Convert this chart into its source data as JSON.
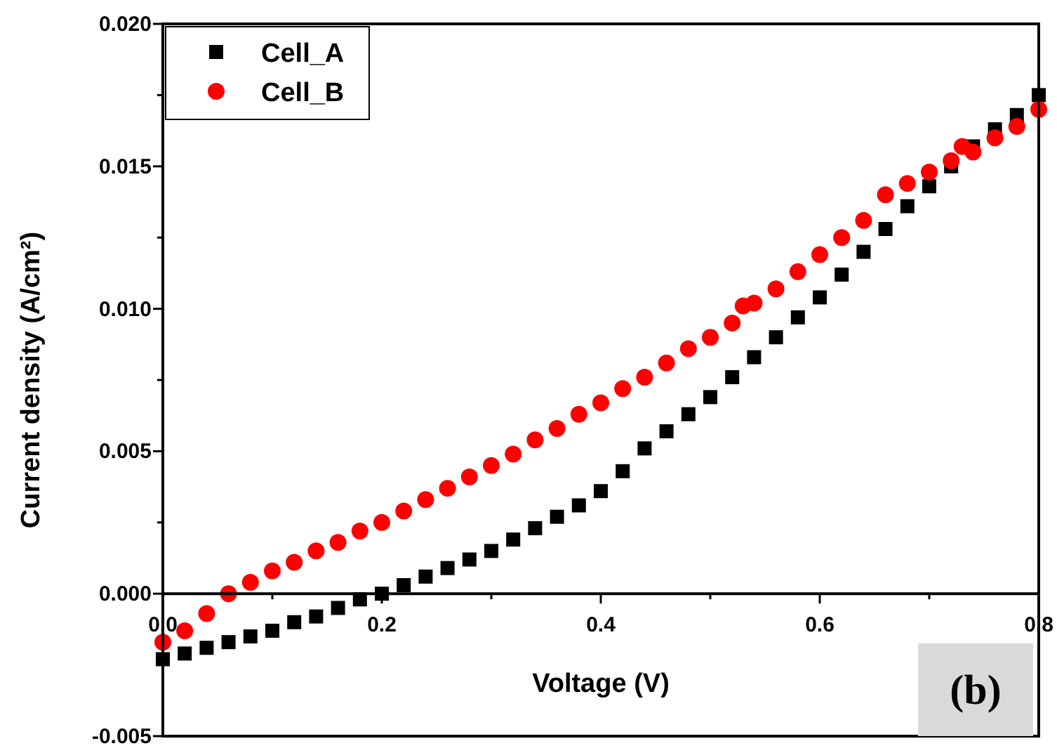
{
  "chart_data": {
    "type": "scatter",
    "xlabel": "Voltage (V)",
    "ylabel": "Current density (A/cm²)",
    "xlim": [
      0,
      0.8
    ],
    "ylim": [
      -0.005,
      0.02
    ],
    "xticks": [
      {
        "value": 0,
        "label": "0.0"
      },
      {
        "value": 0.1,
        "label": null
      },
      0.2,
      {
        "value": 0.3,
        "label": null
      },
      0.4,
      {
        "value": 0.5,
        "label": null
      },
      0.6,
      {
        "value": 0.7,
        "label": null
      },
      0.8
    ],
    "yticks": [
      {
        "value": -0.005,
        "label": "-0.005"
      },
      {
        "value": -0.0025,
        "label": null
      },
      {
        "value": 0,
        "label": "0.000"
      },
      {
        "value": 0.0025,
        "label": null
      },
      {
        "value": 0.005,
        "label": "0.005"
      },
      {
        "value": 0.0075,
        "label": null
      },
      {
        "value": 0.01,
        "label": "0.010"
      },
      {
        "value": 0.0125,
        "label": null
      },
      {
        "value": 0.015,
        "label": "0.015"
      },
      {
        "value": 0.0175,
        "label": null
      },
      {
        "value": 0.02,
        "label": "0.020"
      }
    ],
    "legend": "top left",
    "grid": false,
    "annotations": [
      "(b)"
    ],
    "series": [
      {
        "name": "Cell_A",
        "color": "#000000",
        "marker": "square",
        "x": [
          0,
          0.02,
          0.04,
          0.06,
          0.08,
          0.1,
          0.12,
          0.14,
          0.16,
          0.18,
          0.2,
          0.22,
          0.24,
          0.26,
          0.28,
          0.3,
          0.32,
          0.34,
          0.36,
          0.38,
          0.4,
          0.42,
          0.44,
          0.46,
          0.48,
          0.5,
          0.52,
          0.54,
          0.56,
          0.58,
          0.6,
          0.62,
          0.64,
          0.66,
          0.68,
          0.7,
          0.72,
          0.74,
          0.76,
          0.78,
          0.8
        ],
        "values": [
          -0.0023,
          -0.0021,
          -0.0019,
          -0.0017,
          -0.0015,
          -0.0013,
          -0.001,
          -0.0008,
          -0.0005,
          -0.0002,
          0,
          0.0003,
          0.0006,
          0.0009,
          0.0012,
          0.0015,
          0.0019,
          0.0023,
          0.0027,
          0.0031,
          0.0036,
          0.0043,
          0.0051,
          0.0057,
          0.0063,
          0.0069,
          0.0076,
          0.0083,
          0.009,
          0.0097,
          0.0104,
          0.0112,
          0.012,
          0.0128,
          0.0136,
          0.0143,
          0.015,
          0.0157,
          0.0163,
          0.0168,
          0.0175
        ]
      },
      {
        "name": "Cell_B",
        "color": "#ff0000",
        "marker": "circle",
        "x": [
          0,
          0.02,
          0.04,
          0.06,
          0.08,
          0.1,
          0.12,
          0.14,
          0.16,
          0.18,
          0.2,
          0.22,
          0.24,
          0.26,
          0.28,
          0.3,
          0.32,
          0.34,
          0.36,
          0.38,
          0.4,
          0.42,
          0.44,
          0.46,
          0.48,
          0.5,
          0.52,
          0.53,
          0.54,
          0.56,
          0.58,
          0.6,
          0.62,
          0.64,
          0.66,
          0.68,
          0.7,
          0.72,
          0.73,
          0.74,
          0.76,
          0.78,
          0.8
        ],
        "values": [
          -0.0017,
          -0.0013,
          -0.0007,
          0,
          0.0004,
          0.0008,
          0.0011,
          0.0015,
          0.0018,
          0.0022,
          0.0025,
          0.0029,
          0.0033,
          0.0037,
          0.0041,
          0.0045,
          0.0049,
          0.0054,
          0.0058,
          0.0063,
          0.0067,
          0.0072,
          0.0076,
          0.0081,
          0.0086,
          0.009,
          0.0095,
          0.0101,
          0.0102,
          0.0107,
          0.0113,
          0.0119,
          0.0125,
          0.0131,
          0.014,
          0.0144,
          0.0148,
          0.0152,
          0.0157,
          0.0155,
          0.016,
          0.0164,
          0.017
        ]
      }
    ]
  }
}
